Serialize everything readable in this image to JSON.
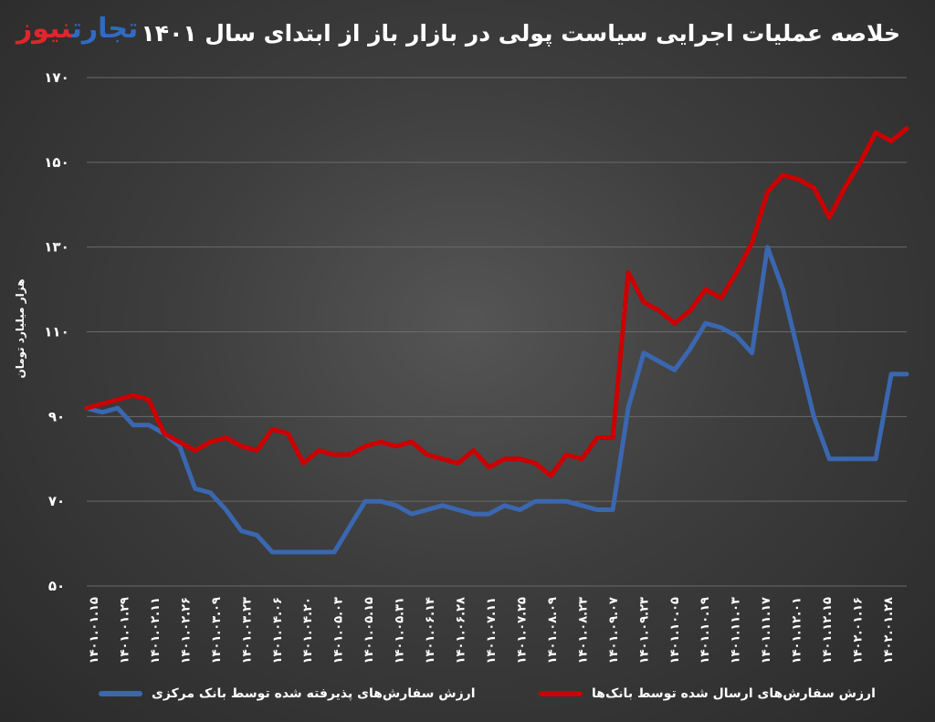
{
  "header": {
    "title": "خلاصه عملیات اجرایی سیاست پولی در بازار باز از ابتدای سال ۱۴۰۱",
    "logo_part1": "تجارت",
    "logo_part2": "نیوز"
  },
  "colors": {
    "red_series": "#cc0000",
    "blue_series": "#3a67b0",
    "logo_blue": "#2e6bc4",
    "logo_red": "#e0262a",
    "gridline": "#6a6a6a"
  },
  "chart_data": {
    "type": "line",
    "title": "خلاصه عملیات اجرایی سیاست پولی در بازار باز از ابتدای سال ۱۴۰۱",
    "ylabel": "هزار میلیارد تومان",
    "xlabel": "",
    "ylim": [
      50,
      170
    ],
    "yticks": [
      50,
      70,
      90,
      110,
      130,
      150,
      170
    ],
    "ytick_labels": [
      "۵۰",
      "۷۰",
      "۹۰",
      "۱۱۰",
      "۱۳۰",
      "۱۵۰",
      "۱۷۰"
    ],
    "grid": true,
    "legend_position": "bottom",
    "x_tick_labels": [
      "۱۴۰۱.۰۱.۱۵",
      "۱۴۰۱.۰۱.۲۹",
      "۱۴۰۱.۰۲.۱۱",
      "۱۴۰۱.۰۲.۲۶",
      "۱۴۰۱.۰۳.۰۹",
      "۱۴۰۱.۰۳.۲۳",
      "۱۴۰۱.۰۴.۰۶",
      "۱۴۰۱.۰۴.۲۰",
      "۱۴۰۱.۰۵.۰۳",
      "۱۴۰۱.۰۵.۱۵",
      "۱۴۰۱.۰۵.۳۱",
      "۱۴۰۱.۰۶.۱۴",
      "۱۴۰۱.۰۶.۲۸",
      "۱۴۰۱.۰۷.۱۱",
      "۱۴۰۱.۰۷.۲۵",
      "۱۴۰۱.۰۸.۰۹",
      "۱۴۰۱.۰۸.۲۳",
      "۱۴۰۱.۰۹.۰۷",
      "۱۴۰۱.۰۹.۲۳",
      "۱۴۰۱.۱۰.۰۵",
      "۱۴۰۱.۱۰.۱۹",
      "۱۴۰۱.۱۱.۰۳",
      "۱۴۰۱.۱۱.۱۷",
      "۱۴۰۱.۱۲.۰۱",
      "۱۴۰۱.۱۲.۱۵",
      "۱۴۰۲.۰۱.۱۶",
      "۱۴۰۲.۰۱.۲۸"
    ],
    "series": [
      {
        "name": "ارزش سفارش‌های ارسال شده توسط بانک‌ها",
        "color": "#cc0000",
        "values": [
          92,
          93,
          94,
          95,
          94,
          86,
          84,
          82,
          84,
          85,
          83,
          82,
          87,
          86,
          79,
          82,
          81,
          81,
          83,
          84,
          83,
          84,
          81,
          80,
          79,
          82,
          78,
          80,
          80,
          79,
          76,
          81,
          80,
          85,
          85,
          124,
          117,
          115,
          112,
          115,
          120,
          118,
          124,
          131,
          143,
          147,
          146,
          144,
          137,
          144,
          150,
          157,
          155,
          158
        ]
      },
      {
        "name": "ارزش سفارش‌های پذیرفته شده توسط بانک مرکزی",
        "color": "#3a67b0",
        "values": [
          92,
          91,
          92,
          88,
          88,
          86,
          83,
          73,
          72,
          68,
          63,
          62,
          58,
          58,
          58,
          58,
          58,
          64,
          70,
          70,
          69,
          67,
          68,
          69,
          68,
          67,
          67,
          69,
          68,
          70,
          70,
          70,
          69,
          68,
          68,
          92,
          105,
          103,
          101,
          106,
          112,
          111,
          109,
          105,
          130,
          120,
          105,
          90,
          80,
          80,
          80,
          80,
          100,
          100
        ]
      }
    ]
  }
}
